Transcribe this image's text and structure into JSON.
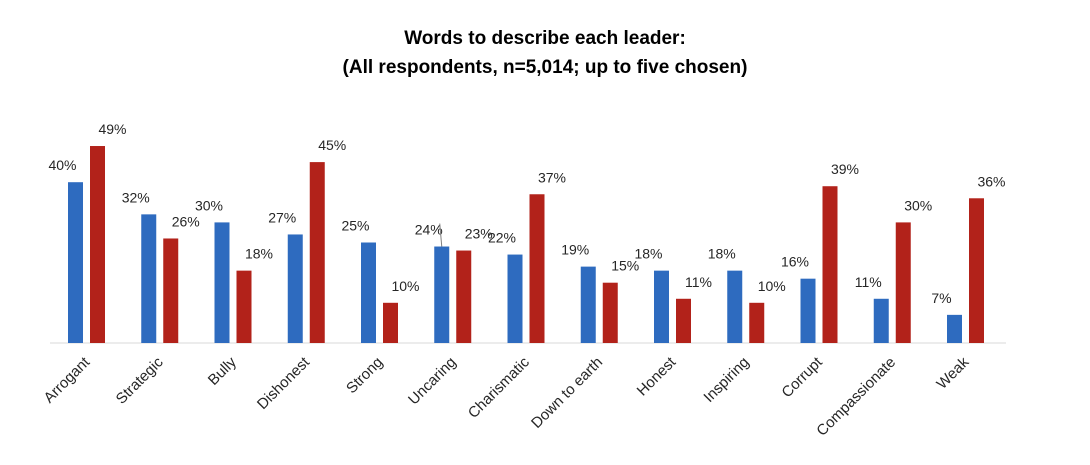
{
  "chart_data": {
    "type": "bar",
    "title": "Words to describe each leader:",
    "subtitle": "(All respondents, n=5,014; up to five chosen)",
    "categories": [
      "Arrogant",
      "Strategic",
      "Bully",
      "Dishonest",
      "Strong",
      "Uncaring",
      "Charismatic",
      "Down to earth",
      "Honest",
      "Inspiring",
      "Corrupt",
      "Compassionate",
      "Weak"
    ],
    "series": [
      {
        "values": [
          40,
          32,
          30,
          27,
          25,
          24,
          22,
          19,
          18,
          18,
          16,
          11,
          7
        ],
        "color": "#2E6BBF"
      },
      {
        "values": [
          49,
          26,
          18,
          45,
          10,
          23,
          37,
          15,
          11,
          10,
          39,
          30,
          36
        ],
        "color": "#B2221A"
      }
    ],
    "value_suffix": "%",
    "xlabel": "",
    "ylabel": "",
    "ylim": [
      0,
      50
    ],
    "grid": false,
    "legend": "none"
  }
}
